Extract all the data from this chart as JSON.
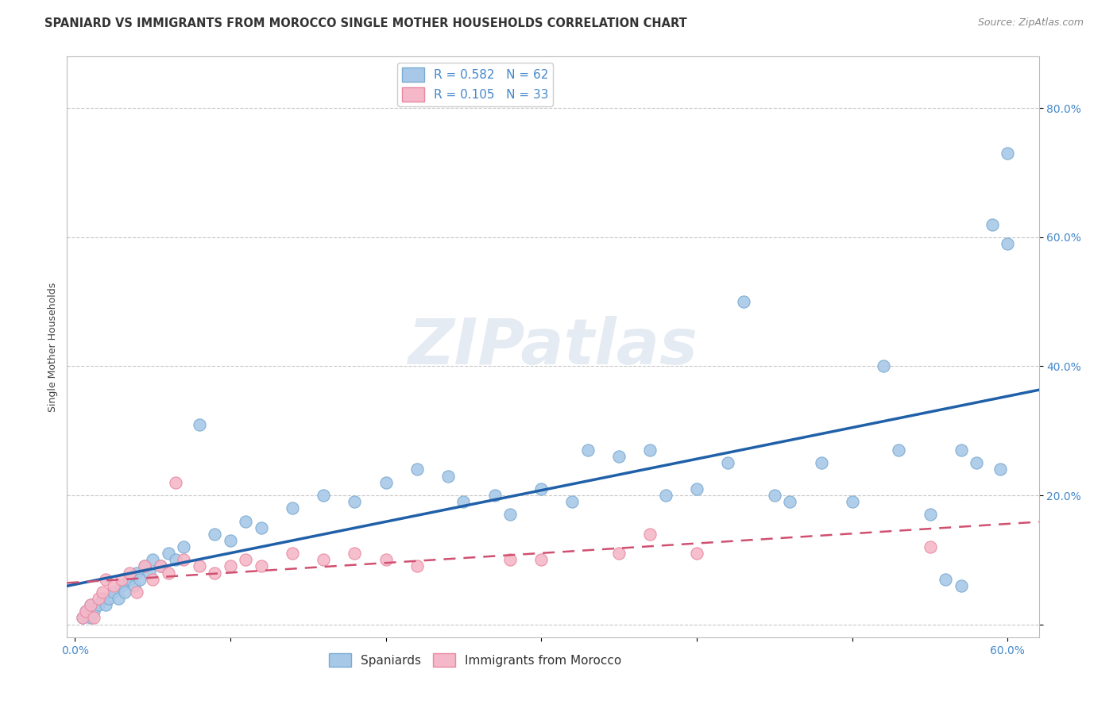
{
  "title": "SPANIARD VS IMMIGRANTS FROM MOROCCO SINGLE MOTHER HOUSEHOLDS CORRELATION CHART",
  "source": "Source: ZipAtlas.com",
  "ylabel": "Single Mother Households",
  "xlim": [
    -0.005,
    0.62
  ],
  "ylim": [
    -0.02,
    0.88
  ],
  "x_ticks": [
    0.0,
    0.1,
    0.2,
    0.3,
    0.4,
    0.5,
    0.6
  ],
  "x_tick_labels": [
    "0.0%",
    "",
    "",
    "",
    "",
    "",
    "60.0%"
  ],
  "y_ticks": [
    0.0,
    0.2,
    0.4,
    0.6,
    0.8
  ],
  "y_tick_labels": [
    "",
    "20.0%",
    "40.0%",
    "60.0%",
    "80.0%"
  ],
  "spaniard_color": "#a8c8e8",
  "spaniard_edge_color": "#7aaad0",
  "morocco_color": "#f5b8c8",
  "morocco_edge_color": "#e888a0",
  "spaniard_line_color": "#2060a8",
  "morocco_line_color": "#d05070",
  "legend_R_spain": "R = 0.582",
  "legend_N_spain": "N = 62",
  "legend_R_morocco": "R = 0.105",
  "legend_N_morocco": "N = 33",
  "watermark": "ZIPatlas",
  "background_color": "#ffffff",
  "grid_color": "#c8c8c8",
  "spaniard_x": [
    0.005,
    0.007,
    0.01,
    0.01,
    0.012,
    0.015,
    0.018,
    0.02,
    0.022,
    0.025,
    0.028,
    0.03,
    0.032,
    0.035,
    0.038,
    0.04,
    0.042,
    0.045,
    0.048,
    0.05,
    0.055,
    0.06,
    0.065,
    0.07,
    0.08,
    0.09,
    0.1,
    0.11,
    0.12,
    0.14,
    0.16,
    0.18,
    0.2,
    0.22,
    0.24,
    0.25,
    0.27,
    0.28,
    0.3,
    0.32,
    0.33,
    0.35,
    0.37,
    0.38,
    0.4,
    0.42,
    0.43,
    0.45,
    0.46,
    0.48,
    0.5,
    0.52,
    0.53,
    0.55,
    0.57,
    0.57,
    0.58,
    0.59,
    0.595,
    0.6,
    0.6,
    0.56
  ],
  "spaniard_y": [
    0.01,
    0.02,
    0.01,
    0.03,
    0.02,
    0.03,
    0.04,
    0.03,
    0.04,
    0.05,
    0.04,
    0.06,
    0.05,
    0.07,
    0.06,
    0.08,
    0.07,
    0.09,
    0.08,
    0.1,
    0.09,
    0.11,
    0.1,
    0.12,
    0.31,
    0.14,
    0.13,
    0.16,
    0.15,
    0.18,
    0.2,
    0.19,
    0.22,
    0.24,
    0.23,
    0.19,
    0.2,
    0.17,
    0.21,
    0.19,
    0.27,
    0.26,
    0.27,
    0.2,
    0.21,
    0.25,
    0.5,
    0.2,
    0.19,
    0.25,
    0.19,
    0.4,
    0.27,
    0.17,
    0.27,
    0.06,
    0.25,
    0.62,
    0.24,
    0.73,
    0.59,
    0.07
  ],
  "morocco_x": [
    0.005,
    0.007,
    0.01,
    0.012,
    0.015,
    0.018,
    0.02,
    0.025,
    0.03,
    0.035,
    0.04,
    0.045,
    0.05,
    0.055,
    0.06,
    0.065,
    0.07,
    0.08,
    0.09,
    0.1,
    0.11,
    0.12,
    0.14,
    0.16,
    0.18,
    0.2,
    0.22,
    0.28,
    0.3,
    0.35,
    0.37,
    0.4,
    0.55
  ],
  "morocco_y": [
    0.01,
    0.02,
    0.03,
    0.01,
    0.04,
    0.05,
    0.07,
    0.06,
    0.07,
    0.08,
    0.05,
    0.09,
    0.07,
    0.09,
    0.08,
    0.22,
    0.1,
    0.09,
    0.08,
    0.09,
    0.1,
    0.09,
    0.11,
    0.1,
    0.11,
    0.1,
    0.09,
    0.1,
    0.1,
    0.11,
    0.14,
    0.11,
    0.12
  ],
  "title_fontsize": 10.5,
  "source_fontsize": 9,
  "axis_label_fontsize": 9,
  "tick_fontsize": 10,
  "legend_fontsize": 11
}
